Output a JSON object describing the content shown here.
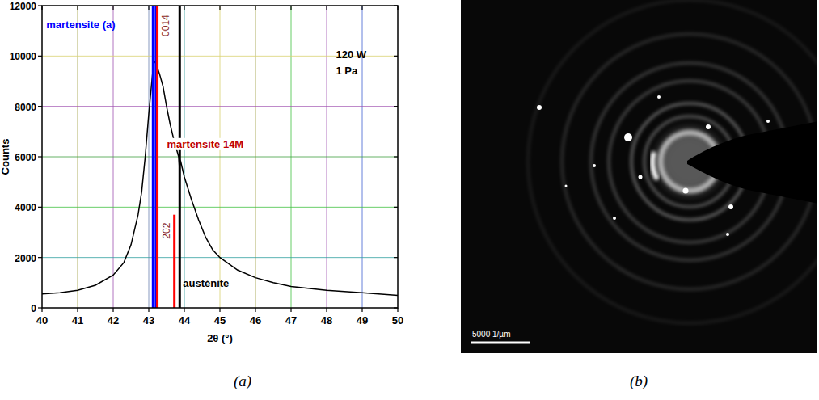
{
  "chart_data": {
    "type": "line",
    "x_label": "2θ (°)",
    "y_label": "Counts",
    "xlim": [
      40,
      50
    ],
    "xticks": [
      40,
      41,
      42,
      43,
      44,
      45,
      46,
      47,
      48,
      49,
      50
    ],
    "ylim": [
      0,
      12000
    ],
    "yticks": [
      0,
      2000,
      4000,
      6000,
      8000,
      10000,
      12000
    ],
    "grid": true,
    "series": [
      {
        "type": "line",
        "color": "#000000",
        "x": [
          40,
          40.5,
          41,
          41.5,
          42,
          42.3,
          42.5,
          42.7,
          42.8,
          42.9,
          43.0,
          43.1,
          43.15,
          43.2,
          43.3,
          43.4,
          43.5,
          43.6,
          43.7,
          43.8,
          43.84,
          43.86,
          43.9,
          44.0,
          44.2,
          44.4,
          44.6,
          44.8,
          45,
          45.5,
          46,
          46.5,
          47,
          48,
          49,
          50
        ],
        "values": [
          550,
          600,
          700,
          900,
          1300,
          1800,
          2500,
          3700,
          4600,
          6000,
          7700,
          9200,
          9800,
          9700,
          9300,
          8800,
          8000,
          7300,
          6700,
          6200,
          6000,
          5600,
          5800,
          5200,
          4300,
          3500,
          2800,
          2300,
          2000,
          1500,
          1200,
          1000,
          850,
          700,
          600,
          500
        ]
      },
      {
        "name": "martensite (a)",
        "type": "stick",
        "color": "#0000ff",
        "x": [
          43.12,
          43.2
        ],
        "values": [
          12000,
          12000
        ]
      },
      {
        "name": "martensite 14M",
        "type": "stick",
        "color": "#ff0000",
        "x": [
          43.24,
          43.72
        ],
        "values": [
          12000,
          3700
        ],
        "peak_labels": [
          "0014",
          "202"
        ]
      },
      {
        "name": "austénite",
        "type": "stick",
        "color": "#000000",
        "x": [
          43.87
        ],
        "values": [
          12000
        ]
      }
    ],
    "annotations": [
      "120 W",
      "1 Pa"
    ]
  },
  "panel_labels": [
    "(a)",
    "(b)"
  ],
  "image": {
    "scale_bar": "5000 1/µm"
  }
}
